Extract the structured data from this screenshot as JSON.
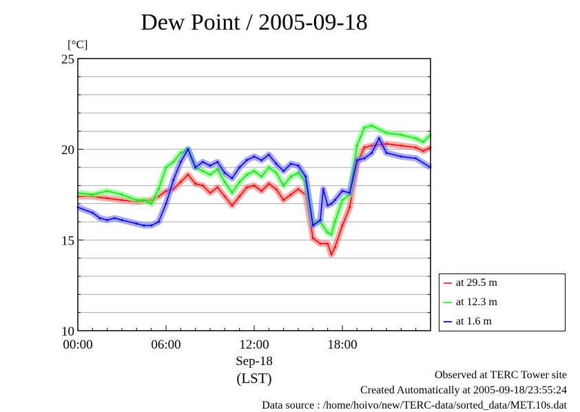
{
  "chart_data": {
    "type": "line",
    "title": "Dew Point / 2005-09-18",
    "ylabel": "[°C]",
    "xlabel": "(LST)",
    "date_label": "Sep-18",
    "xlim": [
      0,
      24
    ],
    "ylim": [
      10,
      25
    ],
    "yticks": [
      10,
      15,
      20,
      25
    ],
    "ytick_labels": [
      "10",
      "15",
      "20",
      "25"
    ],
    "xticks": [
      0,
      6,
      12,
      18
    ],
    "xtick_labels": [
      "00:00",
      "06:00",
      "12:00",
      "18:00"
    ],
    "grid": true,
    "legend_position": "right-bottom",
    "series": [
      {
        "name": "at 29.5 m",
        "color": "#ff0000",
        "band_color": "#ff7070",
        "x": [
          0,
          1,
          2,
          3,
          4,
          5,
          5.5,
          6,
          6.5,
          7,
          7.5,
          8,
          8.5,
          9,
          9.5,
          10,
          10.5,
          11,
          11.5,
          12,
          12.5,
          13,
          13.5,
          14,
          14.5,
          15,
          15.5,
          16,
          16.5,
          17,
          17.25,
          17.5,
          18,
          18.5,
          19,
          19.5,
          20,
          21,
          22,
          23,
          23.5,
          24
        ],
        "y": [
          17.4,
          17.4,
          17.3,
          17.2,
          17.1,
          17.2,
          17.4,
          17.7,
          17.8,
          18.2,
          18.6,
          18.1,
          18.0,
          17.6,
          17.9,
          17.4,
          16.9,
          17.4,
          17.9,
          18.0,
          17.7,
          18.1,
          17.8,
          17.2,
          17.5,
          17.8,
          17.5,
          15.1,
          14.8,
          14.8,
          14.2,
          14.6,
          15.8,
          16.8,
          19.2,
          20.1,
          20.2,
          20.3,
          20.2,
          20.1,
          19.9,
          20.1
        ]
      },
      {
        "name": "at 12.3 m",
        "color": "#00ee00",
        "band_color": "#70ff70",
        "x": [
          0,
          1,
          2,
          3,
          4,
          4.5,
          5,
          5.5,
          6,
          6.5,
          7,
          7.5,
          8,
          8.5,
          9,
          9.5,
          10,
          10.5,
          11,
          11.5,
          12,
          12.5,
          13,
          13.5,
          14,
          14.5,
          15,
          15.5,
          16,
          16.5,
          17,
          17.25,
          17.5,
          18,
          18.5,
          19,
          19.5,
          20,
          21,
          22,
          23,
          23.5,
          24
        ],
        "y": [
          17.6,
          17.5,
          17.7,
          17.5,
          17.2,
          17.2,
          17.0,
          17.8,
          19.0,
          19.3,
          19.8,
          20.0,
          19.0,
          18.8,
          18.6,
          18.9,
          18.2,
          17.6,
          18.2,
          18.6,
          18.8,
          18.5,
          19.0,
          18.7,
          18.0,
          18.5,
          18.7,
          18.2,
          15.9,
          16.0,
          15.4,
          15.3,
          16.0,
          17.2,
          17.5,
          20.2,
          21.2,
          21.3,
          20.9,
          20.8,
          20.6,
          20.4,
          20.8
        ]
      },
      {
        "name": "at 1.6 m",
        "color": "#0000ee",
        "band_color": "#7070ff",
        "x": [
          0,
          1,
          1.5,
          2,
          2.5,
          3,
          4,
          4.5,
          5,
          5.5,
          6,
          6.5,
          7,
          7.5,
          8,
          8.5,
          9,
          9.5,
          10,
          10.5,
          11,
          11.5,
          12,
          12.5,
          13,
          13.5,
          14,
          14.5,
          15,
          15.5,
          16,
          16.5,
          16.7,
          17,
          17.25,
          17.5,
          18,
          18.5,
          19,
          19.5,
          20,
          20.5,
          21,
          22,
          23,
          24
        ],
        "y": [
          16.8,
          16.5,
          16.2,
          16.1,
          16.2,
          16.1,
          15.9,
          15.8,
          15.8,
          16.0,
          17.0,
          18.3,
          19.3,
          20.0,
          19.0,
          19.3,
          19.1,
          19.3,
          18.7,
          18.4,
          19.0,
          19.4,
          19.6,
          19.4,
          19.7,
          19.2,
          18.8,
          19.2,
          19.1,
          18.5,
          15.8,
          16.1,
          17.8,
          16.9,
          17.0,
          17.2,
          17.7,
          17.6,
          19.4,
          19.5,
          19.8,
          20.6,
          19.8,
          19.6,
          19.5,
          19.0
        ]
      }
    ]
  },
  "footer": {
    "site": "Observed at TERC Tower site",
    "created": "Created Automatically at 2005-09-18/23:55:24",
    "source": "Data source : /home/hoivo/new/TERC-data/sorted_data/MET.10s.dat"
  }
}
